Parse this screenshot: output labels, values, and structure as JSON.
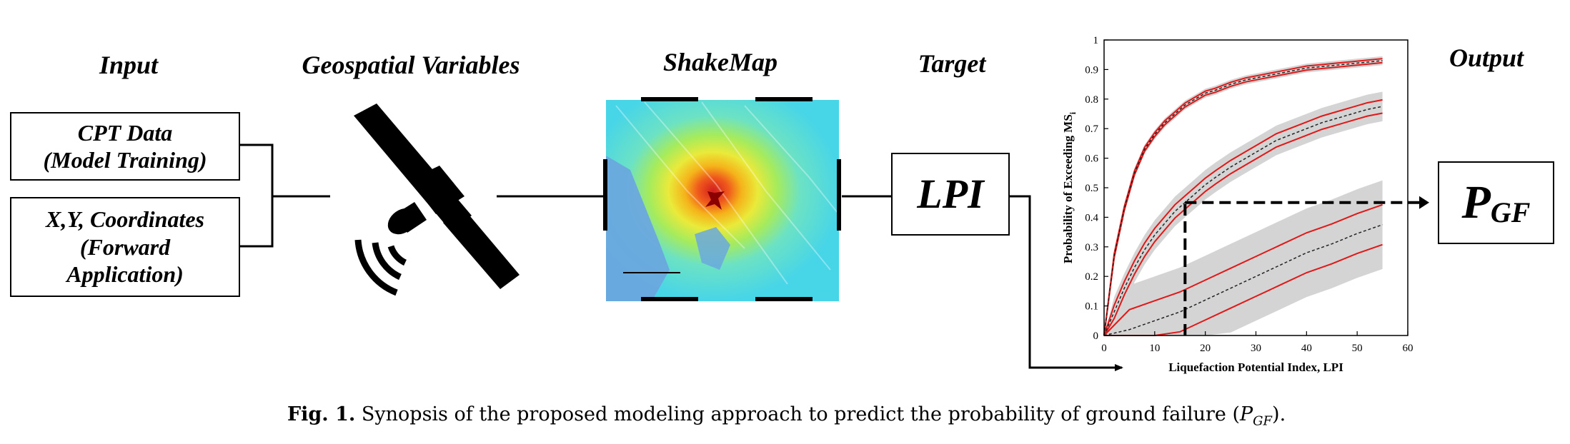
{
  "headers": {
    "input": "Input",
    "geospatial": "Geospatial Variables",
    "shakemap": "ShakeMap",
    "target": "Target",
    "output": "Output"
  },
  "input_boxes": [
    {
      "lines": [
        "CPT Data",
        "(Model Training)"
      ]
    },
    {
      "lines": [
        "X,Y, Coordinates",
        "(Forward",
        "Application)"
      ]
    }
  ],
  "target_box": {
    "label": "LPI"
  },
  "output_box": {
    "main": "P",
    "sub": "GF"
  },
  "chart_data": {
    "type": "line",
    "xlabel": "Liquefaction Potential Index, LPI",
    "ylabel": "Probability of Exceeding MS",
    "ylabel_sub": "i",
    "xlim": [
      0,
      60
    ],
    "ylim": [
      0,
      1
    ],
    "xticks": [
      0,
      10,
      20,
      30,
      40,
      50,
      60
    ],
    "yticks": [
      0,
      0.1,
      0.2,
      0.3,
      0.4,
      0.5,
      0.6,
      0.7,
      0.8,
      0.9,
      1
    ],
    "grid": false,
    "highlight": {
      "x": 16,
      "y": 0.45
    },
    "series": [
      {
        "x": [
          0,
          2,
          4,
          6,
          8,
          10,
          12,
          14,
          16,
          18,
          20,
          22,
          25,
          28,
          31,
          34,
          37,
          40,
          43,
          46,
          49,
          52,
          55
        ],
        "y": [
          0,
          0.27,
          0.43,
          0.55,
          0.63,
          0.68,
          0.72,
          0.75,
          0.78,
          0.8,
          0.82,
          0.83,
          0.85,
          0.865,
          0.875,
          0.885,
          0.895,
          0.905,
          0.91,
          0.915,
          0.92,
          0.925,
          0.93
        ],
        "band": 0.015
      },
      {
        "x": [
          0,
          2,
          4,
          6,
          8,
          10,
          12,
          14,
          16,
          18,
          20,
          22,
          25,
          28,
          31,
          34,
          37,
          40,
          43,
          46,
          49,
          52,
          55
        ],
        "y": [
          0,
          0.08,
          0.16,
          0.23,
          0.29,
          0.34,
          0.38,
          0.42,
          0.45,
          0.48,
          0.51,
          0.535,
          0.57,
          0.6,
          0.63,
          0.66,
          0.68,
          0.7,
          0.72,
          0.735,
          0.75,
          0.765,
          0.775
        ],
        "band": 0.05
      },
      {
        "x": [
          0,
          5,
          10,
          15,
          20,
          25,
          30,
          35,
          40,
          45,
          50,
          55
        ],
        "y": [
          0,
          0.02,
          0.05,
          0.08,
          0.12,
          0.16,
          0.2,
          0.24,
          0.28,
          0.31,
          0.345,
          0.375
        ],
        "band": 0.15
      }
    ]
  },
  "caption": {
    "label": "Fig. 1.",
    "text": "Synopsis of the proposed modeling approach to predict the probability of ground failure (",
    "sym_main": "P",
    "sym_sub": "GF",
    "end": ")."
  }
}
